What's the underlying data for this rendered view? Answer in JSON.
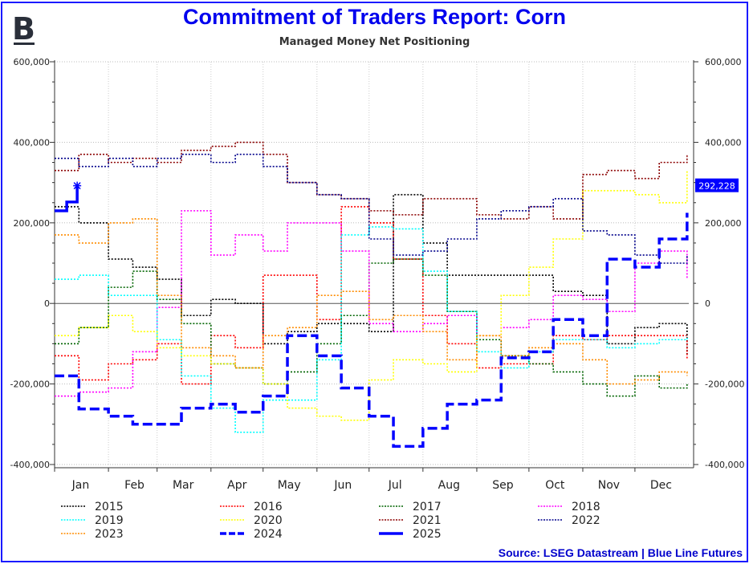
{
  "header": {
    "title": "Commitment of Traders Report: Corn",
    "subtitle": "Managed Money Net Positioning",
    "logo_letter": "B"
  },
  "footer": {
    "source": "Source: LSEG Datastream | Blue Line Futures"
  },
  "chart_data": {
    "type": "line",
    "title": "Commitment of Traders Report: Corn",
    "subtitle": "Managed Money Net Positioning",
    "ylim": [
      -400000,
      600000
    ],
    "yticks": [
      "-400,000",
      "-200,000",
      "0",
      "200,000",
      "400,000",
      "600,000"
    ],
    "ytick_values": [
      -400000,
      -200000,
      0,
      200000,
      400000,
      600000
    ],
    "xticks": [
      "Jan",
      "Feb",
      "Mar",
      "Apr",
      "May",
      "Jun",
      "Jul",
      "Aug",
      "Sep",
      "Oct",
      "Nov",
      "Dec"
    ],
    "grid": true,
    "legend_placement": "bottom",
    "last_value_label": "292,228",
    "x": [
      "01-01",
      "01-15",
      "02-01",
      "02-15",
      "03-01",
      "03-15",
      "04-01",
      "04-15",
      "05-01",
      "05-15",
      "06-01",
      "06-15",
      "07-01",
      "07-15",
      "08-01",
      "08-15",
      "09-01",
      "09-15",
      "10-01",
      "10-15",
      "11-01",
      "11-15",
      "12-01",
      "12-15",
      "12-31"
    ],
    "series": [
      {
        "name": "2015",
        "color": "#000000",
        "style": "dotted",
        "values": [
          240000,
          200000,
          110000,
          90000,
          60000,
          -30000,
          10000,
          0,
          -100000,
          -70000,
          -50000,
          -50000,
          -70000,
          270000,
          150000,
          70000,
          70000,
          70000,
          70000,
          30000,
          20000,
          -100000,
          -60000,
          -50000,
          -130000
        ]
      },
      {
        "name": "2016",
        "color": "#ff0000",
        "style": "dotted",
        "values": [
          -130000,
          -190000,
          -150000,
          -140000,
          -100000,
          -200000,
          -80000,
          -110000,
          70000,
          70000,
          -40000,
          240000,
          200000,
          110000,
          -30000,
          -100000,
          -160000,
          -150000,
          -150000,
          -80000,
          -90000,
          -80000,
          -80000,
          -80000,
          -140000
        ]
      },
      {
        "name": "2017",
        "color": "#006400",
        "style": "dotted",
        "values": [
          -100000,
          -60000,
          40000,
          80000,
          10000,
          -50000,
          -150000,
          -160000,
          -200000,
          -170000,
          -100000,
          -30000,
          100000,
          110000,
          70000,
          -20000,
          -90000,
          -130000,
          -150000,
          -170000,
          -200000,
          -230000,
          -180000,
          -210000,
          -200000
        ]
      },
      {
        "name": "2018",
        "color": "#ff00ff",
        "style": "dotted",
        "values": [
          -230000,
          -220000,
          -210000,
          -120000,
          -10000,
          230000,
          120000,
          170000,
          130000,
          200000,
          200000,
          130000,
          -50000,
          -70000,
          -50000,
          -30000,
          -80000,
          -60000,
          -40000,
          20000,
          10000,
          -20000,
          100000,
          130000,
          60000
        ]
      },
      {
        "name": "2019",
        "color": "#00ffff",
        "style": "dotted",
        "values": [
          60000,
          70000,
          20000,
          20000,
          -90000,
          -180000,
          -260000,
          -320000,
          -240000,
          -240000,
          -140000,
          170000,
          190000,
          185000,
          80000,
          -20000,
          -120000,
          -160000,
          -120000,
          -90000,
          -90000,
          -110000,
          -100000,
          -90000,
          -80000
        ]
      },
      {
        "name": "2020",
        "color": "#ffff00",
        "style": "dotted",
        "values": [
          -80000,
          -60000,
          -30000,
          -70000,
          -110000,
          -130000,
          -150000,
          -160000,
          -200000,
          -260000,
          -280000,
          -290000,
          -190000,
          -140000,
          -150000,
          -170000,
          -80000,
          20000,
          90000,
          160000,
          280000,
          280000,
          270000,
          250000,
          330000
        ]
      },
      {
        "name": "2021",
        "color": "#8b0000",
        "style": "dotted",
        "values": [
          330000,
          370000,
          350000,
          360000,
          350000,
          380000,
          390000,
          400000,
          370000,
          300000,
          270000,
          260000,
          230000,
          220000,
          260000,
          260000,
          220000,
          210000,
          240000,
          210000,
          320000,
          330000,
          310000,
          350000,
          370000
        ]
      },
      {
        "name": "2022",
        "color": "#00008b",
        "style": "dotted",
        "values": [
          360000,
          340000,
          360000,
          340000,
          360000,
          370000,
          350000,
          370000,
          340000,
          300000,
          270000,
          260000,
          160000,
          120000,
          130000,
          160000,
          210000,
          230000,
          240000,
          260000,
          180000,
          170000,
          120000,
          100000,
          120000
        ]
      },
      {
        "name": "2023",
        "color": "#ff8c00",
        "style": "dotted",
        "values": [
          170000,
          150000,
          200000,
          210000,
          20000,
          -110000,
          -130000,
          -160000,
          -80000,
          -60000,
          20000,
          30000,
          -40000,
          -30000,
          -70000,
          -140000,
          -80000,
          -130000,
          -110000,
          -100000,
          -140000,
          -200000,
          -190000,
          -170000,
          -180000
        ]
      },
      {
        "name": "2024",
        "color": "#0000ff",
        "style": "dashed",
        "values": [
          -180000,
          -262000,
          -280000,
          -300000,
          -300000,
          -260000,
          -250000,
          -270000,
          -230000,
          -80000,
          -130000,
          -210000,
          -280000,
          -355000,
          -310000,
          -250000,
          -240000,
          -135000,
          -120000,
          -40000,
          -80000,
          110000,
          90000,
          160000,
          225000
        ]
      },
      {
        "name": "2025",
        "color": "#0000ff",
        "style": "solid",
        "x": [
          "01-01",
          "01-04",
          "01-08",
          "01-14"
        ],
        "values": [
          230000,
          230000,
          252000,
          292228
        ]
      }
    ]
  }
}
